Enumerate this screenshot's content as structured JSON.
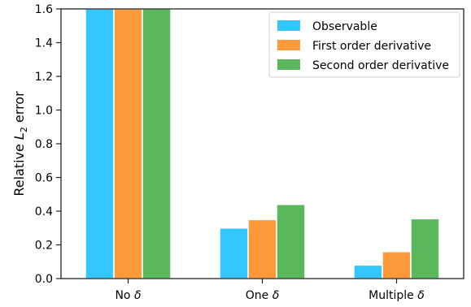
{
  "chart_data": {
    "type": "bar",
    "categories": [
      "No δ",
      "One δ",
      "Multiple δ"
    ],
    "series": [
      {
        "name": "Observable",
        "color": "#33c6ff",
        "values": [
          1.6,
          0.3,
          0.08
        ]
      },
      {
        "name": "First order derivative",
        "color": "#ff9a3c",
        "values": [
          1.6,
          0.35,
          0.16
        ]
      },
      {
        "name": "Second order derivative",
        "color": "#5bb75b",
        "values": [
          1.6,
          0.44,
          0.355
        ]
      }
    ],
    "ylabel": {
      "prefix": "Relative ",
      "symbol": "L",
      "subscript": "2",
      "suffix": " error"
    },
    "ylim": [
      0,
      1.6
    ],
    "yticks": [
      "0.0",
      "0.2",
      "0.4",
      "0.6",
      "0.8",
      "1.0",
      "1.2",
      "1.4",
      "1.6"
    ],
    "xlabel": "",
    "title": "",
    "legend_position": "top-right",
    "grid": false
  }
}
